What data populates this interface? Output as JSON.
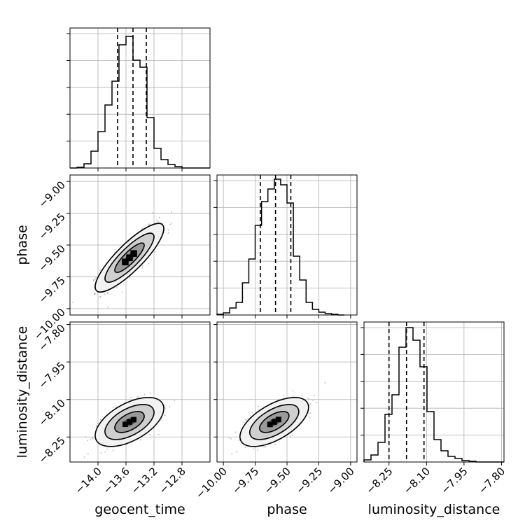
{
  "chart_data": {
    "type": "corner",
    "title": "",
    "parameters": [
      {
        "name": "geocent_time",
        "range": [
          -14.4,
          -12.4
        ],
        "ticks": [
          -14.0,
          -13.6,
          -13.2,
          -12.8
        ],
        "tick_labels": [
          "−14.0",
          "−13.6",
          "−13.2",
          "−12.8"
        ],
        "quantiles": [
          -13.72,
          -13.5,
          -13.31
        ],
        "hist_bins": [
          -14.4,
          -14.3,
          -14.2,
          -14.1,
          -14.0,
          -13.9,
          -13.8,
          -13.7,
          -13.6,
          -13.5,
          -13.4,
          -13.3,
          -13.2,
          -13.1,
          -13.0,
          -12.9,
          -12.8,
          -12.7,
          -12.6,
          -12.5,
          -12.4
        ],
        "hist_heights": [
          0,
          0.005,
          0.03,
          0.12,
          0.26,
          0.45,
          0.62,
          0.88,
          0.94,
          0.77,
          0.72,
          0.36,
          0.14,
          0.06,
          0.025,
          0.01,
          0,
          0,
          0,
          0
        ]
      },
      {
        "name": "phase",
        "range": [
          -10.05,
          -8.95
        ],
        "ticks": [
          -10.0,
          -9.75,
          -9.5,
          -9.25,
          -9.0
        ],
        "tick_labels": [
          "−10.00",
          "−9.75",
          "−9.50",
          "−9.25",
          "−9.00"
        ],
        "quantiles": [
          -9.71,
          -9.59,
          -9.47
        ],
        "hist_bins": [
          -10.05,
          -10.0,
          -9.95,
          -9.9,
          -9.85,
          -9.8,
          -9.75,
          -9.7,
          -9.65,
          -9.6,
          -9.55,
          -9.5,
          -9.45,
          -9.4,
          -9.35,
          -9.3,
          -9.25,
          -9.2,
          -9.15,
          -9.1,
          -9.05
        ],
        "hist_heights": [
          0.005,
          0.015,
          0.05,
          0.09,
          0.23,
          0.4,
          0.64,
          0.81,
          0.9,
          0.97,
          0.93,
          0.8,
          0.42,
          0.25,
          0.09,
          0.04,
          0.02,
          0.01,
          0.005,
          0
        ]
      },
      {
        "name": "luminosity_distance",
        "range": [
          -8.35,
          -7.79
        ],
        "ticks": [
          -8.25,
          -8.1,
          -7.95,
          -7.8
        ],
        "tick_labels": [
          "−8.25",
          "−8.10",
          "−7.95",
          "−7.80"
        ],
        "quantiles": [
          -8.25,
          -8.18,
          -8.11
        ],
        "hist_bins": [
          -8.35,
          -8.322,
          -8.294,
          -8.266,
          -8.238,
          -8.21,
          -8.182,
          -8.154,
          -8.126,
          -8.098,
          -8.07,
          -8.042,
          -8.014,
          -7.986,
          -7.958,
          -7.93,
          -7.902,
          -7.874,
          -7.846,
          -7.818,
          -7.79
        ],
        "hist_heights": [
          0.015,
          0.05,
          0.14,
          0.34,
          0.48,
          0.82,
          0.96,
          0.87,
          0.68,
          0.36,
          0.16,
          0.08,
          0.04,
          0.025,
          0.01,
          0.005,
          0,
          0,
          0,
          0
        ]
      }
    ],
    "density_panels": [
      {
        "x_param": "geocent_time",
        "y_param": "phase",
        "mean": [
          -13.55,
          -9.6
        ],
        "std": [
          0.2,
          0.11
        ],
        "correlation": 0.85
      },
      {
        "x_param": "geocent_time",
        "y_param": "luminosity_distance",
        "mean": [
          -13.55,
          -8.19
        ],
        "std": [
          0.2,
          0.04
        ],
        "correlation": 0.55
      },
      {
        "x_param": "phase",
        "y_param": "luminosity_distance",
        "mean": [
          -9.6,
          -8.19
        ],
        "std": [
          0.11,
          0.04
        ],
        "correlation": 0.6
      }
    ],
    "grid": true,
    "colors": {
      "line": "#000000",
      "points": "#808080",
      "grid": "#b0b0b0"
    }
  }
}
